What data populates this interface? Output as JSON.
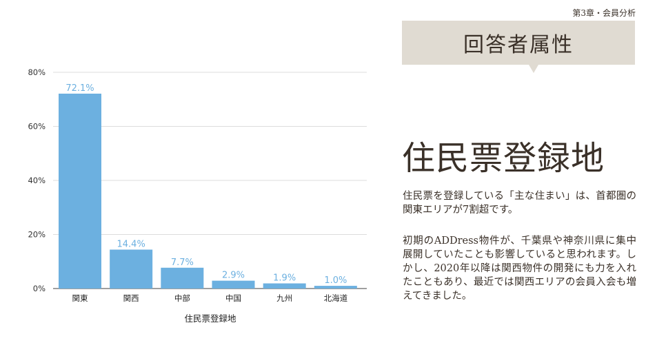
{
  "header": {
    "chapter": "第3章・会員分析",
    "badge": "回答者属性"
  },
  "content": {
    "heading": "住民票登録地",
    "paragraph1": "住民票を登録している「主な住まい」は、首都圏の関東エリアが7割超です。",
    "paragraph2": "初期のADDress物件が、千葉県や神奈川県に集中展開していたことも影響していると思われます。しかし、2020年以降は関西物件の開発にも力を入れたこともあり、最近では関西エリアの会員入会も増えてきました。"
  },
  "chart_data": {
    "type": "bar",
    "categories": [
      "関東",
      "関西",
      "中部",
      "中国",
      "九州",
      "北海道"
    ],
    "values": [
      72.1,
      14.4,
      7.7,
      2.9,
      1.9,
      1.0
    ],
    "data_labels": [
      "72.1%",
      "14.4%",
      "7.7%",
      "2.9%",
      "1.9%",
      "1.0%"
    ],
    "xlabel": "住民票登録地",
    "ylabel": "",
    "ylim": [
      0,
      80
    ],
    "yticks": [
      0,
      20,
      40,
      60,
      80
    ],
    "ytick_labels": [
      "0%",
      "20%",
      "40%",
      "60%",
      "80%"
    ],
    "grid": true,
    "bar_color": "#6cb0e0",
    "label_color": "#6cb0e0"
  }
}
